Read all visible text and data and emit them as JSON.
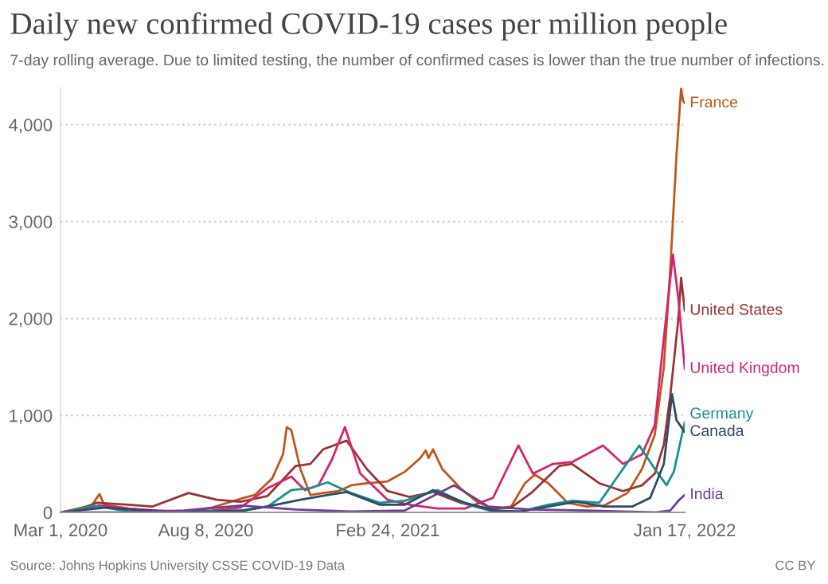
{
  "chart_data": {
    "type": "line",
    "title": "Daily new confirmed COVID-19 cases per million people",
    "subtitle": "7-day rolling average. Due to limited testing, the number of confirmed cases is lower than the true number of infections.",
    "annotations": [
      "Source: Johns Hopkins University CSSE COVID-19 Data",
      "CC BY"
    ],
    "xlim": [
      "2020-03-01",
      "2022-01-17"
    ],
    "xticks": [
      {
        "value": "2020-03-01",
        "label": "Mar 1, 2020"
      },
      {
        "value": "2020-08-08",
        "label": "Aug 8, 2020"
      },
      {
        "value": "2021-02-24",
        "label": "Feb 24, 2021"
      },
      {
        "value": "2022-01-17",
        "label": "Jan 17, 2022"
      }
    ],
    "ylim": [
      0,
      4380
    ],
    "yticks": [
      0,
      {
        "value": 1000,
        "label": "1,000"
      },
      {
        "value": 2000,
        "label": "2,000"
      },
      {
        "value": 3000,
        "label": "3,000"
      },
      {
        "value": 4000,
        "label": "4,000"
      }
    ],
    "grid": "y",
    "legend": false,
    "line_style": "solid",
    "series": [
      {
        "name": "France",
        "color": "#c0561b",
        "x": [
          "2020-03-01",
          "2020-03-25",
          "2020-04-05",
          "2020-04-13",
          "2020-04-18",
          "2020-05-15",
          "2020-06-15",
          "2020-07-15",
          "2020-08-15",
          "2020-09-15",
          "2020-10-01",
          "2020-10-20",
          "2020-11-01",
          "2020-11-05",
          "2020-11-10",
          "2020-11-20",
          "2020-12-01",
          "2020-12-15",
          "2021-01-01",
          "2021-01-15",
          "2021-02-01",
          "2021-02-24",
          "2021-03-15",
          "2021-04-01",
          "2021-04-07",
          "2021-04-10",
          "2021-04-15",
          "2021-04-25",
          "2021-05-15",
          "2021-06-01",
          "2021-06-20",
          "2021-07-10",
          "2021-07-25",
          "2021-08-05",
          "2021-08-20",
          "2021-09-10",
          "2021-10-01",
          "2021-10-20",
          "2021-11-15",
          "2021-12-01",
          "2021-12-15",
          "2021-12-25",
          "2022-01-01",
          "2022-01-08",
          "2022-01-13",
          "2022-01-15",
          "2022-01-17"
        ],
        "values": [
          0,
          50,
          80,
          190,
          80,
          40,
          10,
          10,
          50,
          140,
          180,
          350,
          600,
          880,
          850,
          450,
          180,
          200,
          220,
          280,
          300,
          320,
          420,
          560,
          640,
          560,
          650,
          450,
          250,
          120,
          30,
          60,
          300,
          390,
          300,
          100,
          60,
          70,
          200,
          450,
          800,
          1500,
          2500,
          3700,
          4380,
          4250,
          4220
        ]
      },
      {
        "name": "United States",
        "color": "#9a3334",
        "x": [
          "2020-03-01",
          "2020-03-15",
          "2020-04-10",
          "2020-05-15",
          "2020-06-10",
          "2020-07-20",
          "2020-08-20",
          "2020-09-15",
          "2020-10-15",
          "2020-11-15",
          "2020-12-01",
          "2020-12-15",
          "2021-01-10",
          "2021-02-01",
          "2021-02-24",
          "2021-03-20",
          "2021-04-15",
          "2021-05-15",
          "2021-06-15",
          "2021-07-10",
          "2021-08-01",
          "2021-09-01",
          "2021-09-15",
          "2021-10-15",
          "2021-11-10",
          "2021-12-01",
          "2021-12-15",
          "2021-12-25",
          "2022-01-01",
          "2022-01-10",
          "2022-01-13",
          "2022-01-17"
        ],
        "values": [
          0,
          0,
          100,
          80,
          60,
          200,
          130,
          110,
          170,
          480,
          500,
          650,
          740,
          450,
          220,
          160,
          210,
          100,
          40,
          50,
          200,
          480,
          500,
          300,
          220,
          280,
          400,
          700,
          1200,
          2000,
          2420,
          2080
        ]
      },
      {
        "name": "United Kingdom",
        "color": "#d6246e",
        "x": [
          "2020-03-01",
          "2020-03-20",
          "2020-04-12",
          "2020-05-15",
          "2020-06-15",
          "2020-07-15",
          "2020-08-15",
          "2020-09-15",
          "2020-10-15",
          "2020-11-10",
          "2020-11-25",
          "2020-12-10",
          "2020-12-25",
          "2021-01-08",
          "2021-01-25",
          "2021-02-24",
          "2021-03-20",
          "2021-04-20",
          "2021-05-20",
          "2021-06-20",
          "2021-07-18",
          "2021-08-03",
          "2021-08-25",
          "2021-09-15",
          "2021-10-19",
          "2021-11-10",
          "2021-12-01",
          "2021-12-15",
          "2021-12-25",
          "2022-01-04",
          "2022-01-10",
          "2022-01-17"
        ],
        "values": [
          0,
          20,
          70,
          40,
          20,
          10,
          20,
          50,
          250,
          370,
          230,
          280,
          550,
          880,
          400,
          130,
          80,
          40,
          40,
          150,
          690,
          400,
          500,
          520,
          690,
          500,
          600,
          900,
          1800,
          2660,
          2200,
          1480
        ]
      },
      {
        "name": "Germany",
        "color": "#18918c",
        "x": [
          "2020-03-01",
          "2020-03-20",
          "2020-04-05",
          "2020-05-15",
          "2020-07-15",
          "2020-09-15",
          "2020-10-15",
          "2020-11-10",
          "2020-12-01",
          "2020-12-20",
          "2021-01-15",
          "2021-02-15",
          "2021-03-15",
          "2021-04-20",
          "2021-05-20",
          "2021-06-20",
          "2021-07-20",
          "2021-08-20",
          "2021-09-15",
          "2021-10-15",
          "2021-11-28",
          "2021-12-15",
          "2021-12-28",
          "2022-01-05",
          "2022-01-17"
        ],
        "values": [
          0,
          30,
          70,
          10,
          0,
          20,
          60,
          230,
          250,
          310,
          200,
          100,
          120,
          230,
          90,
          10,
          10,
          80,
          120,
          100,
          690,
          450,
          280,
          420,
          930
        ]
      },
      {
        "name": "Canada",
        "color": "#2d4a6b",
        "x": [
          "2020-03-01",
          "2020-04-20",
          "2020-05-15",
          "2020-07-01",
          "2020-08-15",
          "2020-09-20",
          "2020-10-20",
          "2020-11-20",
          "2020-12-20",
          "2021-01-10",
          "2021-02-15",
          "2021-03-15",
          "2021-04-15",
          "2021-05-20",
          "2021-06-20",
          "2021-07-20",
          "2021-08-20",
          "2021-09-20",
          "2021-10-20",
          "2021-11-20",
          "2021-12-10",
          "2021-12-25",
          "2022-01-03",
          "2022-01-08",
          "2022-01-17"
        ],
        "values": [
          0,
          50,
          30,
          10,
          10,
          20,
          70,
          130,
          180,
          210,
          80,
          80,
          230,
          100,
          20,
          10,
          60,
          110,
          60,
          60,
          150,
          500,
          1220,
          950,
          830
        ]
      },
      {
        "name": "India",
        "color": "#6d3e91",
        "x": [
          "2020-03-01",
          "2020-05-15",
          "2020-07-15",
          "2020-09-16",
          "2020-11-15",
          "2021-01-15",
          "2021-03-15",
          "2021-05-08",
          "2021-06-15",
          "2021-08-01",
          "2021-10-01",
          "2021-12-15",
          "2022-01-01",
          "2022-01-10",
          "2022-01-17"
        ],
        "values": [
          0,
          0,
          20,
          70,
          30,
          10,
          20,
          280,
          60,
          30,
          20,
          0,
          20,
          120,
          180
        ]
      }
    ]
  }
}
